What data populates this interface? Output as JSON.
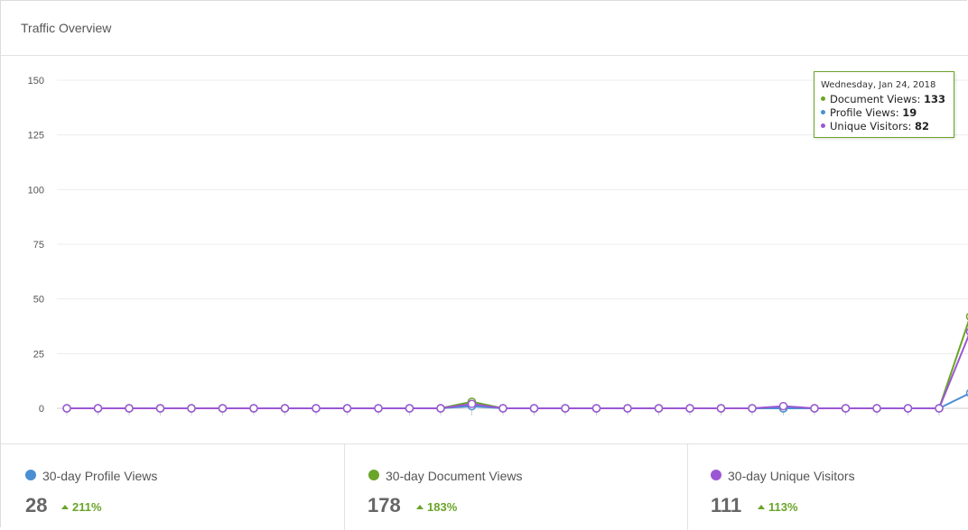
{
  "header": {
    "title": "Traffic Overview"
  },
  "colors": {
    "document": "#6aa428",
    "profile": "#4a8fd4",
    "visitors": "#9b57d3",
    "positive": "#6aa428"
  },
  "chart_data": {
    "type": "line",
    "y_ticks": [
      "150",
      "125",
      "100",
      "75",
      "50",
      "25",
      "0"
    ],
    "ylim": [
      0,
      150
    ],
    "grid": true,
    "x_count": 31,
    "series": [
      {
        "key": "document",
        "color": "#6aa428",
        "values": [
          0,
          0,
          0,
          0,
          0,
          0,
          0,
          0,
          0,
          0,
          0,
          0,
          0,
          3,
          0,
          0,
          0,
          0,
          0,
          0,
          0,
          0,
          0,
          0,
          0,
          0,
          0,
          0,
          0,
          42,
          133
        ]
      },
      {
        "key": "profile",
        "color": "#4a8fd4",
        "values": [
          0,
          0,
          0,
          0,
          0,
          0,
          0,
          0,
          0,
          0,
          0,
          0,
          0,
          1,
          0,
          0,
          0,
          0,
          0,
          0,
          0,
          0,
          0,
          0,
          0,
          0,
          0,
          0,
          0,
          7,
          19
        ]
      },
      {
        "key": "visitors",
        "color": "#9b57d3",
        "values": [
          0,
          0,
          0,
          0,
          0,
          0,
          0,
          0,
          0,
          0,
          0,
          0,
          0,
          2,
          0,
          0,
          0,
          0,
          0,
          0,
          0,
          0,
          0,
          1,
          0,
          0,
          0,
          0,
          0,
          35,
          82
        ]
      }
    ]
  },
  "tooltip": {
    "date": "Wednesday, Jan 24, 2018",
    "rows": [
      {
        "label": "Document Views:",
        "value": "133"
      },
      {
        "label": "Profile Views:",
        "value": "19"
      },
      {
        "label": "Unique Visitors:",
        "value": "82"
      }
    ]
  },
  "stats": [
    {
      "label": "30-day Profile Views",
      "value": "28",
      "change": "211%"
    },
    {
      "label": "30-day Document Views",
      "value": "178",
      "change": "183%"
    },
    {
      "label": "30-day Unique Visitors",
      "value": "111",
      "change": "113%"
    }
  ]
}
